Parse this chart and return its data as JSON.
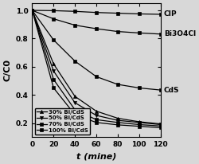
{
  "xlabel": "t (mine)",
  "ylabel": "C/C0",
  "xlim": [
    0,
    120
  ],
  "ylim": [
    0.1,
    1.05
  ],
  "yticks": [
    0.2,
    0.4,
    0.6,
    0.8,
    1.0
  ],
  "xticks": [
    0,
    20,
    40,
    60,
    80,
    100,
    120
  ],
  "t": [
    0,
    20,
    40,
    60,
    80,
    100,
    120
  ],
  "series": {
    "CIP": [
      1.0,
      0.998,
      0.993,
      0.985,
      0.98,
      0.975,
      0.972
    ],
    "Bi3O4Cl": [
      1.0,
      0.94,
      0.895,
      0.87,
      0.85,
      0.84,
      0.832
    ],
    "CdS": [
      1.0,
      0.79,
      0.64,
      0.53,
      0.475,
      0.45,
      0.435
    ],
    "30% Bi/CdS": [
      1.0,
      0.62,
      0.39,
      0.285,
      0.235,
      0.21,
      0.195
    ],
    "50% Bi/CdS": [
      1.0,
      0.57,
      0.345,
      0.255,
      0.22,
      0.205,
      0.19
    ],
    "70% Bi/CdS": [
      1.0,
      0.51,
      0.295,
      0.225,
      0.205,
      0.19,
      0.18
    ],
    "100% Bi/CdS": [
      1.0,
      0.45,
      0.26,
      0.205,
      0.188,
      0.178,
      0.168
    ]
  },
  "markers": {
    "CIP": "s",
    "Bi3O4Cl": "s",
    "CdS": "s",
    "30% Bi/CdS": "^",
    "50% Bi/CdS": "v",
    "70% Bi/CdS": "s",
    "100% Bi/CdS": "s"
  },
  "right_labels": {
    "CIP": [
      120,
      0.972
    ],
    "Bi3O4Cl": [
      120,
      0.832
    ],
    "CdS": [
      120,
      0.435
    ]
  },
  "legend_labels": [
    "30% Bi/CdS",
    "50% Bi/CdS",
    "70% Bi/CdS",
    "100% Bi/CdS"
  ],
  "line_color": "#000000",
  "bg_color": "#d8d8d8",
  "fontsize_tick": 6.5,
  "fontsize_label": 8,
  "fontsize_annot": 6.5,
  "fontsize_legend": 5.0,
  "markersize": 3.0,
  "linewidth": 0.9
}
